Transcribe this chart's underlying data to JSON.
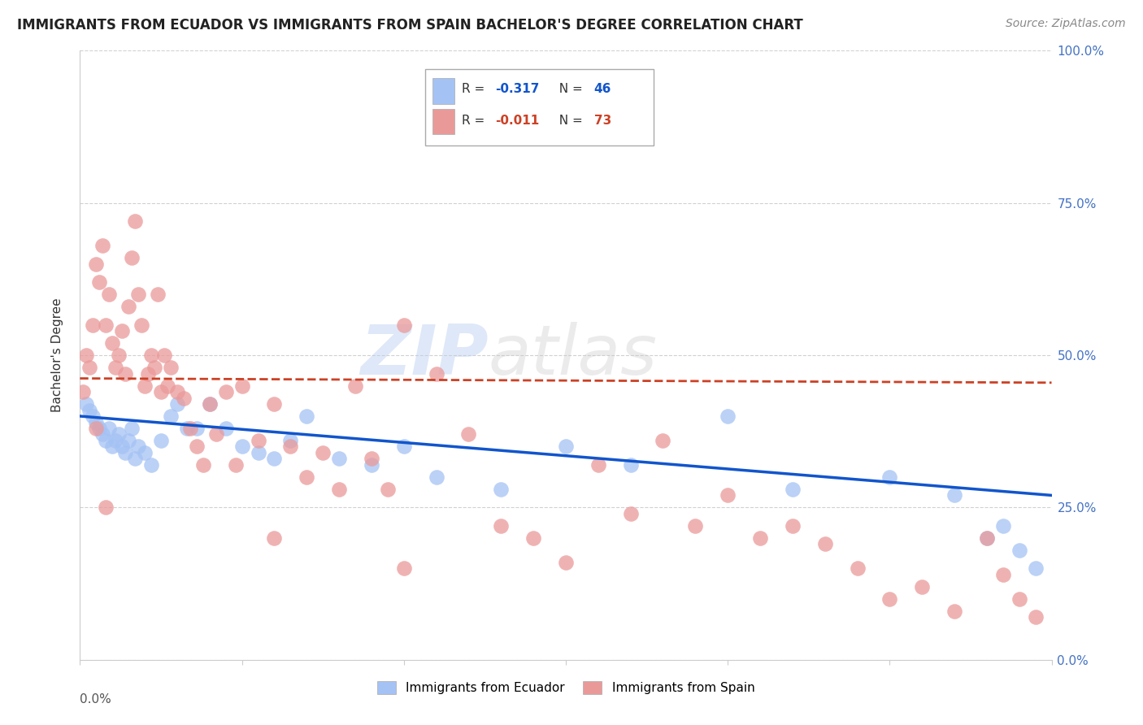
{
  "title": "IMMIGRANTS FROM ECUADOR VS IMMIGRANTS FROM SPAIN BACHELOR'S DEGREE CORRELATION CHART",
  "source": "Source: ZipAtlas.com",
  "ylabel": "Bachelor's Degree",
  "right_yticklabels": [
    "0.0%",
    "25.0%",
    "50.0%",
    "75.0%",
    "100.0%"
  ],
  "right_yticks": [
    0.0,
    0.25,
    0.5,
    0.75,
    1.0
  ],
  "legend_label_ecuador": "Immigrants from Ecuador",
  "legend_label_spain": "Immigrants from Spain",
  "color_ecuador": "#a4c2f4",
  "color_spain": "#ea9999",
  "color_trendline_ecuador": "#1155cc",
  "color_trendline_spain": "#cc4125",
  "scatter_alpha": 0.75,
  "ecuador_x": [
    0.002,
    0.003,
    0.004,
    0.005,
    0.006,
    0.007,
    0.008,
    0.009,
    0.01,
    0.011,
    0.012,
    0.013,
    0.014,
    0.015,
    0.016,
    0.017,
    0.018,
    0.02,
    0.022,
    0.025,
    0.028,
    0.03,
    0.033,
    0.036,
    0.04,
    0.045,
    0.05,
    0.055,
    0.06,
    0.065,
    0.07,
    0.08,
    0.09,
    0.1,
    0.11,
    0.13,
    0.15,
    0.17,
    0.2,
    0.22,
    0.25,
    0.27,
    0.28,
    0.285,
    0.29,
    0.295
  ],
  "ecuador_y": [
    0.42,
    0.41,
    0.4,
    0.39,
    0.38,
    0.37,
    0.36,
    0.38,
    0.35,
    0.36,
    0.37,
    0.35,
    0.34,
    0.36,
    0.38,
    0.33,
    0.35,
    0.34,
    0.32,
    0.36,
    0.4,
    0.42,
    0.38,
    0.38,
    0.42,
    0.38,
    0.35,
    0.34,
    0.33,
    0.36,
    0.4,
    0.33,
    0.32,
    0.35,
    0.3,
    0.28,
    0.35,
    0.32,
    0.4,
    0.28,
    0.3,
    0.27,
    0.2,
    0.22,
    0.18,
    0.15
  ],
  "spain_x": [
    0.001,
    0.002,
    0.003,
    0.004,
    0.005,
    0.006,
    0.007,
    0.008,
    0.009,
    0.01,
    0.011,
    0.012,
    0.013,
    0.014,
    0.015,
    0.016,
    0.017,
    0.018,
    0.019,
    0.02,
    0.021,
    0.022,
    0.023,
    0.024,
    0.025,
    0.026,
    0.027,
    0.028,
    0.03,
    0.032,
    0.034,
    0.036,
    0.038,
    0.04,
    0.042,
    0.045,
    0.048,
    0.05,
    0.055,
    0.06,
    0.065,
    0.07,
    0.075,
    0.08,
    0.085,
    0.09,
    0.095,
    0.1,
    0.11,
    0.12,
    0.13,
    0.14,
    0.15,
    0.16,
    0.17,
    0.18,
    0.19,
    0.2,
    0.21,
    0.22,
    0.23,
    0.24,
    0.25,
    0.26,
    0.27,
    0.28,
    0.285,
    0.29,
    0.295,
    0.1,
    0.06,
    0.005,
    0.008
  ],
  "spain_y": [
    0.44,
    0.5,
    0.48,
    0.55,
    0.65,
    0.62,
    0.68,
    0.55,
    0.6,
    0.52,
    0.48,
    0.5,
    0.54,
    0.47,
    0.58,
    0.66,
    0.72,
    0.6,
    0.55,
    0.45,
    0.47,
    0.5,
    0.48,
    0.6,
    0.44,
    0.5,
    0.45,
    0.48,
    0.44,
    0.43,
    0.38,
    0.35,
    0.32,
    0.42,
    0.37,
    0.44,
    0.32,
    0.45,
    0.36,
    0.42,
    0.35,
    0.3,
    0.34,
    0.28,
    0.45,
    0.33,
    0.28,
    0.55,
    0.47,
    0.37,
    0.22,
    0.2,
    0.16,
    0.32,
    0.24,
    0.36,
    0.22,
    0.27,
    0.2,
    0.22,
    0.19,
    0.15,
    0.1,
    0.12,
    0.08,
    0.2,
    0.14,
    0.1,
    0.07,
    0.15,
    0.2,
    0.38,
    0.25
  ],
  "ecuador_trendline": [
    0.4,
    0.27
  ],
  "spain_trendline": [
    0.462,
    0.455
  ],
  "xlim": [
    0.0,
    0.3
  ],
  "ylim": [
    0.0,
    1.0
  ],
  "background_color": "#ffffff",
  "grid_color": "#cccccc",
  "watermark_zip": "ZIP",
  "watermark_atlas": "atlas",
  "title_fontsize": 12,
  "source_fontsize": 10,
  "axis_label_fontsize": 11,
  "tick_fontsize": 11
}
